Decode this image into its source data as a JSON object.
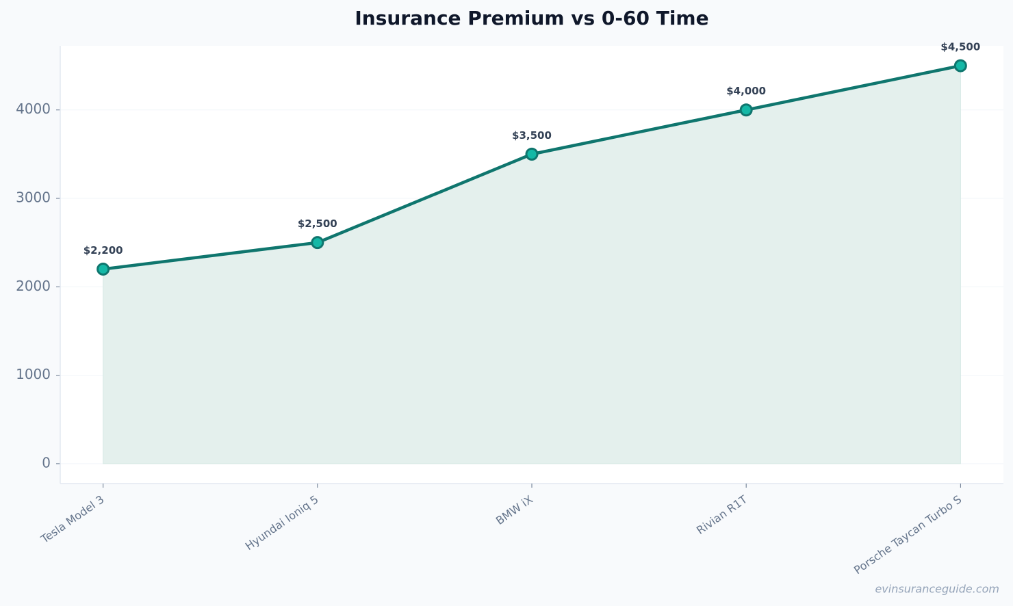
{
  "chart_data": {
    "type": "line",
    "title": "Insurance Premium vs 0-60 Time",
    "categories": [
      "Tesla Model 3",
      "Hyundai Ioniq 5",
      "BMW iX",
      "Rivian R1T",
      "Porsche Taycan Turbo S"
    ],
    "values": [
      2200,
      2500,
      3500,
      4000,
      4500
    ],
    "value_labels": [
      "$2,200",
      "$2,500",
      "$3,500",
      "$4,000",
      "$4,500"
    ],
    "color": "#0f766e",
    "marker_color": "#14b8a6",
    "area_color": "#e4f0ed",
    "ylim": [
      -225,
      4725
    ],
    "yticks": [
      0,
      1000,
      2000,
      3000,
      4000
    ],
    "grid": true,
    "watermark": "evinsuranceguide.com"
  }
}
